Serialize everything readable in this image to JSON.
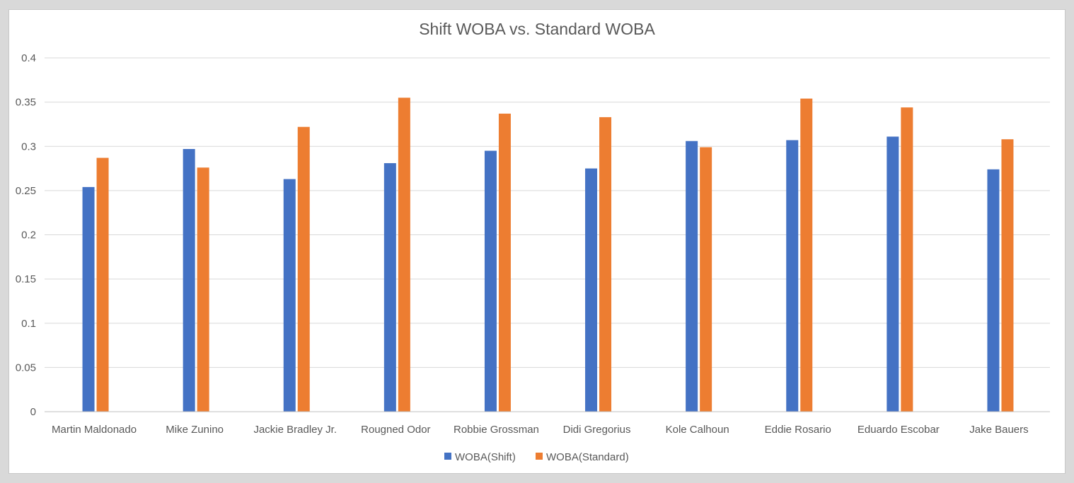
{
  "chart_data": {
    "type": "bar",
    "title": "Shift WOBA vs. Standard WOBA",
    "xlabel": "",
    "ylabel": "",
    "categories": [
      "Martin Maldonado",
      "Mike Zunino",
      "Jackie Bradley Jr.",
      "Rougned Odor",
      "Robbie Grossman",
      "Didi Gregorius",
      "Kole Calhoun",
      "Eddie Rosario",
      "Eduardo Escobar",
      "Jake Bauers"
    ],
    "series": [
      {
        "name": "WOBA(Shift)",
        "color": "#4472c4",
        "values": [
          0.254,
          0.297,
          0.263,
          0.281,
          0.295,
          0.275,
          0.306,
          0.307,
          0.311,
          0.274
        ]
      },
      {
        "name": "WOBA(Standard)",
        "color": "#ed7d31",
        "values": [
          0.287,
          0.276,
          0.322,
          0.355,
          0.337,
          0.333,
          0.299,
          0.354,
          0.344,
          0.308
        ]
      }
    ],
    "ylim": [
      0,
      0.4
    ],
    "yticks": [
      "0",
      "0.05",
      "0.1",
      "0.15",
      "0.2",
      "0.25",
      "0.3",
      "0.35",
      "0.4"
    ],
    "grid": true,
    "legend_position": "bottom"
  }
}
